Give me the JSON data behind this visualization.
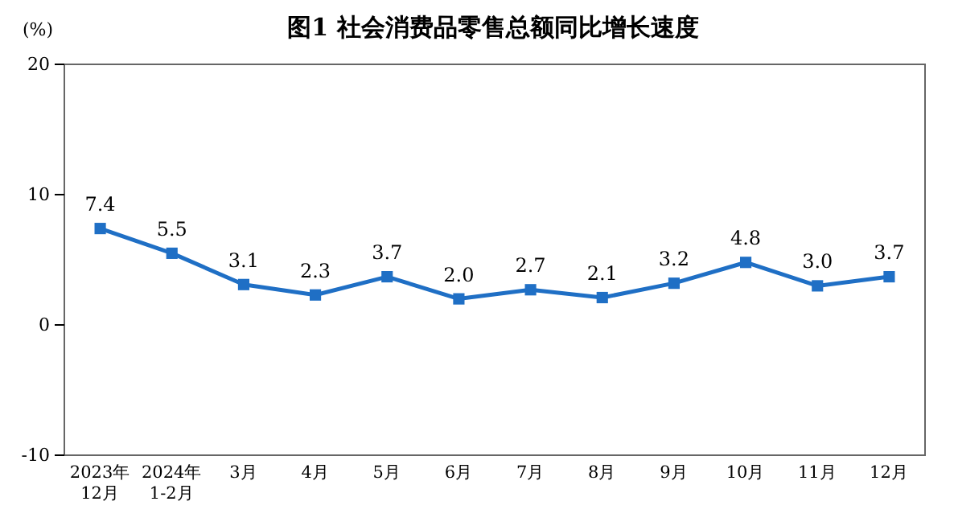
{
  "chart_data": {
    "type": "line",
    "title": "图1  社会消费品零售总额同比增长速度",
    "ylabel": "(%)",
    "categories": [
      "2023年\n12月",
      "2024年\n1-2月",
      "3月",
      "4月",
      "5月",
      "6月",
      "7月",
      "8月",
      "9月",
      "10月",
      "11月",
      "12月"
    ],
    "series": [
      {
        "color": "#1f6fc5",
        "values": [
          7.4,
          5.5,
          3.1,
          2.3,
          3.7,
          2.0,
          2.7,
          2.1,
          3.2,
          4.8,
          3.0,
          3.7
        ],
        "value_labels": [
          "7.4",
          "5.5",
          "3.1",
          "2.3",
          "3.7",
          "2.0",
          "2.7",
          "2.1",
          "3.2",
          "4.8",
          "3.0",
          "3.7"
        ]
      }
    ],
    "ylim": [
      -10,
      20
    ],
    "yticks": [
      -10,
      0,
      10,
      20
    ],
    "marker": "square",
    "line_style": "solid"
  }
}
